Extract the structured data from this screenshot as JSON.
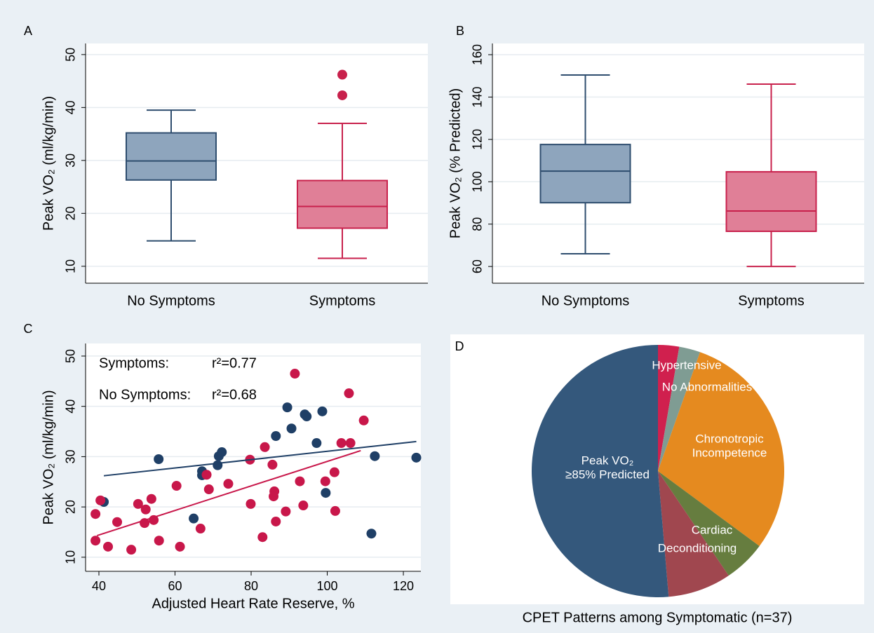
{
  "chart_data": [
    {
      "type": "box",
      "label": "A",
      "ylabel": "Peak VO₂ (ml/kg/min)",
      "categories": [
        "No Symptoms",
        "Symptoms"
      ],
      "boxes": [
        {
          "whisker_low": 14.8,
          "q1": 26.3,
          "median": 29.9,
          "q3": 35.2,
          "whisker_high": 39.5,
          "outliers": []
        },
        {
          "whisker_low": 11.5,
          "q1": 17.2,
          "median": 21.3,
          "q3": 26.2,
          "whisker_high": 37.0,
          "outliers": [
            42.3,
            46.2
          ]
        }
      ],
      "colors": [
        {
          "fill": "#8ea5bd",
          "stroke": "#2e4d6e"
        },
        {
          "fill": "#e07f97",
          "stroke": "#c8214c"
        }
      ],
      "ylim": [
        6.8,
        52.1
      ],
      "yticks": [
        10,
        20,
        30,
        40,
        50
      ],
      "grid": true
    },
    {
      "type": "box",
      "label": "B",
      "ylabel": "Peak VO₂ (% Predicted)",
      "categories": [
        "No Symptoms",
        "Symptoms"
      ],
      "boxes": [
        {
          "whisker_low": 66,
          "q1": 90.1,
          "median": 105,
          "q3": 117.6,
          "whisker_high": 150.4,
          "outliers": []
        },
        {
          "whisker_low": 60,
          "q1": 76.6,
          "median": 86.2,
          "q3": 104.7,
          "whisker_high": 146.1,
          "outliers": []
        }
      ],
      "colors": [
        {
          "fill": "#8ea5bd",
          "stroke": "#2e4d6e"
        },
        {
          "fill": "#e07f97",
          "stroke": "#c8214c"
        }
      ],
      "ylim": [
        52.1,
        165.3
      ],
      "yticks": [
        60,
        80,
        100,
        120,
        140,
        160
      ],
      "grid": true
    },
    {
      "type": "scatter",
      "label": "C",
      "ylabel": "Peak VO₂ (ml/kg/min)",
      "xlabel": "Adjusted Heart Rate Reserve, %",
      "xlim": [
        36.5,
        124.6
      ],
      "xticks": [
        40,
        60,
        80,
        100,
        120
      ],
      "ylim": [
        7.2,
        52.5
      ],
      "yticks": [
        10,
        20,
        30,
        40,
        50
      ],
      "grid": true,
      "annotations": [
        {
          "label": "Symptoms:",
          "text": "r²=0.77"
        },
        {
          "label": "No Symptoms:",
          "text": "r²=0.68"
        }
      ],
      "series": [
        {
          "color": "#1f3f66",
          "x": [
            41.3,
            55.7,
            64.9,
            67.1,
            67.1,
            71.2,
            71.5,
            72.3,
            86.5,
            89.5,
            90.6,
            94.1,
            94.6,
            97.2,
            98.7,
            99.6,
            111.6,
            112.5,
            123.4
          ],
          "y": [
            21.0,
            29.5,
            17.7,
            27.1,
            26.3,
            28.3,
            30.1,
            30.9,
            34.1,
            39.8,
            35.6,
            38.4,
            38.0,
            32.7,
            39.0,
            22.8,
            14.7,
            30.1,
            29.8
          ],
          "fit": {
            "x": [
              41.3,
              123.4
            ],
            "y": [
              26.2,
              33.0
            ]
          }
        },
        {
          "color": "#c8174a",
          "x": [
            39.1,
            39.1,
            40.4,
            42.4,
            44.8,
            48.5,
            50.3,
            52.0,
            52.3,
            53.8,
            54.4,
            55.8,
            60.4,
            61.3,
            66.7,
            68.3,
            68.9,
            74.0,
            79.7,
            79.9,
            83.0,
            83.6,
            85.6,
            86.1,
            85.9,
            86.5,
            89.1,
            91.5,
            92.8,
            93.7,
            99.5,
            101.9,
            102.1,
            103.7,
            105.7,
            106.1,
            109.6
          ],
          "y": [
            18.6,
            13.3,
            21.3,
            12.1,
            17.0,
            11.5,
            20.6,
            16.8,
            19.5,
            21.6,
            17.4,
            13.3,
            24.2,
            12.1,
            15.7,
            26.4,
            23.5,
            24.6,
            29.4,
            20.6,
            14.0,
            31.9,
            28.4,
            23.1,
            22.1,
            17.1,
            19.1,
            46.5,
            25.1,
            20.3,
            25.1,
            26.9,
            19.2,
            32.7,
            42.6,
            32.7,
            37.2
          ],
          "fit": {
            "x": [
              39.5,
              108.8
            ],
            "y": [
              14.3,
              31.2
            ]
          }
        }
      ]
    },
    {
      "type": "pie",
      "label": "D",
      "caption": "CPET Patterns among Symptomatic (n=37)",
      "categories": [
        [
          "Hypertensive"
        ],
        [
          "No Abnormalities"
        ],
        [
          "Chronotropic",
          "Incompetence"
        ],
        [
          "Cardiac"
        ],
        [
          "Deconditioning"
        ],
        [
          "Peak VO₂",
          "≥85% Predicted"
        ]
      ],
      "values": [
        1,
        1,
        11,
        2,
        3,
        19
      ],
      "colors": [
        "#d0204e",
        "#7f9c93",
        "#e58a1f",
        "#667d3f",
        "#a0474f",
        "#34587c"
      ]
    }
  ]
}
